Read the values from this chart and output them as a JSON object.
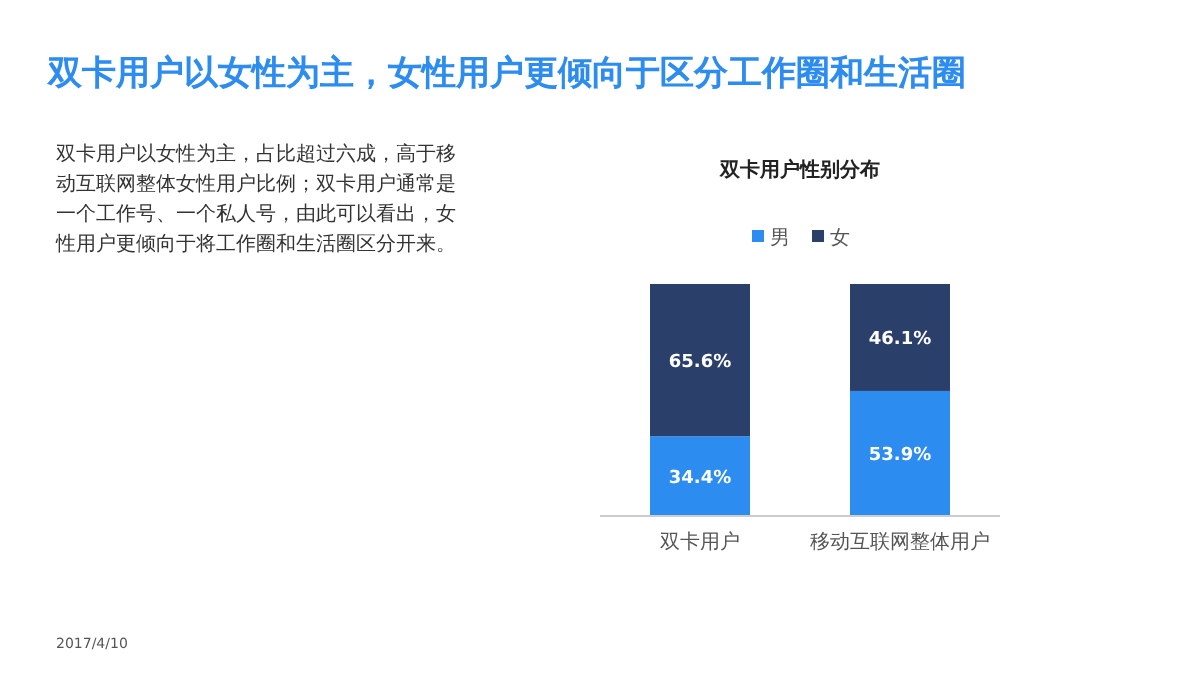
{
  "chart_data": {
    "type": "bar",
    "stacked": true,
    "title": "双卡用户性别分布",
    "subtitle": "双卡用户以女性为主，女性用户更倾向于区分工作圈和生活圈",
    "annotations": [
      "双卡用户以女性为主，占比超过六成，高于移动互联网整体女性用户比例；双卡用户通常是一个工作号、一个私人号，由此可以看出，女性用户更倾向于将工作圈和生活圈区分开来。",
      "2017/4/10"
    ],
    "categories": [
      "双卡用户",
      "移动互联网整体用户"
    ],
    "series": [
      {
        "name": "男",
        "color": "#2d8cf0",
        "values": [
          34.4,
          53.9
        ],
        "value_labels": [
          "34.4%",
          "53.9%"
        ]
      },
      {
        "name": "女",
        "color": "#2b3f6b",
        "values": [
          65.6,
          46.1
        ],
        "value_labels": [
          "65.6%",
          "46.1%"
        ]
      }
    ],
    "legend": "top"
  }
}
